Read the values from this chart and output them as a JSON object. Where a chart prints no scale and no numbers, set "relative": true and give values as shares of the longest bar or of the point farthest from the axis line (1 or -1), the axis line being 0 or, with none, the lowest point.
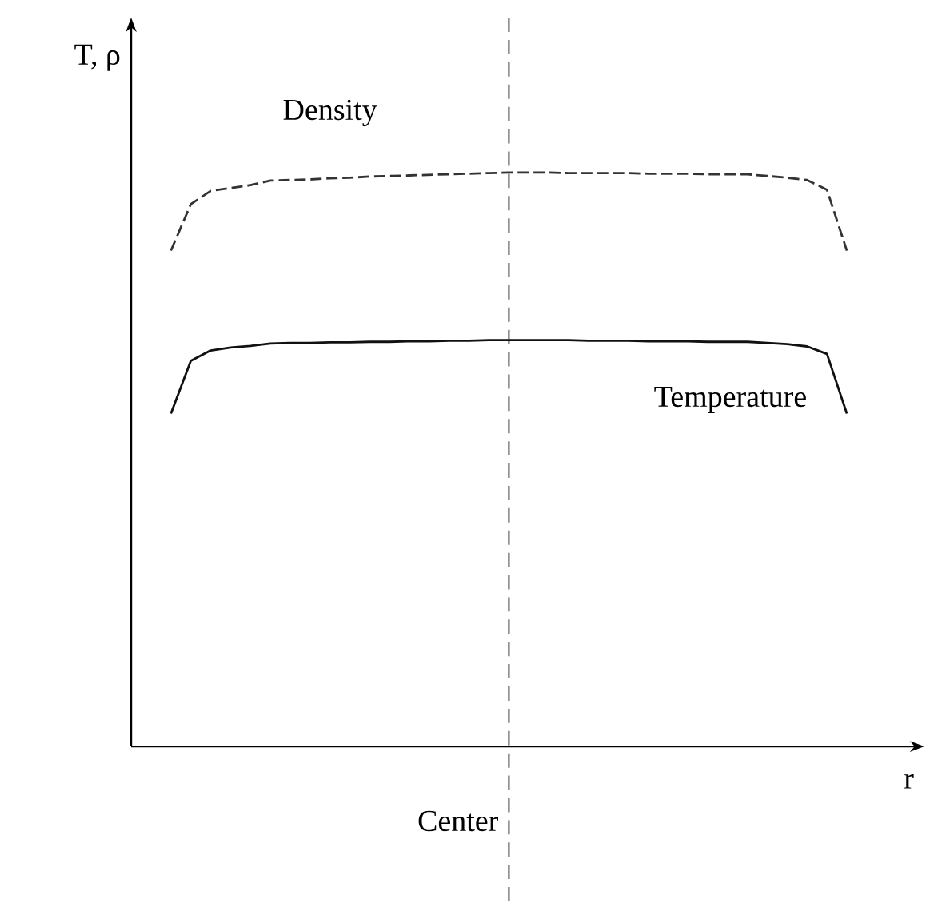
{
  "chart_data": {
    "type": "line",
    "relative": true,
    "xlabel": "r",
    "ylabel": "T, ρ",
    "categories": [
      null,
      null,
      null,
      null,
      null,
      null,
      null,
      null,
      null,
      null,
      null,
      null,
      null,
      null,
      null,
      null,
      null,
      null,
      null,
      null,
      null,
      null,
      null,
      null,
      null,
      null,
      null,
      null,
      null,
      null,
      null,
      null,
      null,
      null,
      null,
      null,
      null,
      null,
      null
    ],
    "series": [
      {
        "name": "Density",
        "color": "#333333",
        "line_style": "dashed",
        "values": [
          null,
          null,
          0.864,
          0.945,
          0.968,
          0.973,
          0.978,
          0.986,
          0.987,
          0.988,
          0.99,
          0.991,
          0.993,
          0.994,
          0.995,
          0.996,
          0.997,
          0.998,
          0.999,
          1.0,
          1.0,
          1.0,
          0.999,
          0.999,
          0.999,
          0.999,
          0.998,
          0.998,
          0.998,
          0.997,
          0.997,
          0.997,
          0.994,
          0.991,
          0.987,
          0.97,
          0.864,
          null,
          null
        ]
      },
      {
        "name": "Temperature",
        "color": "#111111",
        "line_style": "solid",
        "values": [
          null,
          null,
          0.58,
          0.672,
          0.69,
          0.695,
          0.698,
          0.702,
          0.703,
          0.703,
          0.704,
          0.704,
          0.705,
          0.705,
          0.706,
          0.706,
          0.707,
          0.707,
          0.708,
          0.708,
          0.708,
          0.708,
          0.708,
          0.707,
          0.707,
          0.707,
          0.706,
          0.706,
          0.706,
          0.705,
          0.705,
          0.705,
          0.703,
          0.701,
          0.697,
          0.684,
          0.58,
          null,
          null
        ]
      }
    ],
    "ref_lines": [
      {
        "axis": "x",
        "label": "Center",
        "color": "#666666",
        "line_style": "dashed"
      }
    ]
  }
}
